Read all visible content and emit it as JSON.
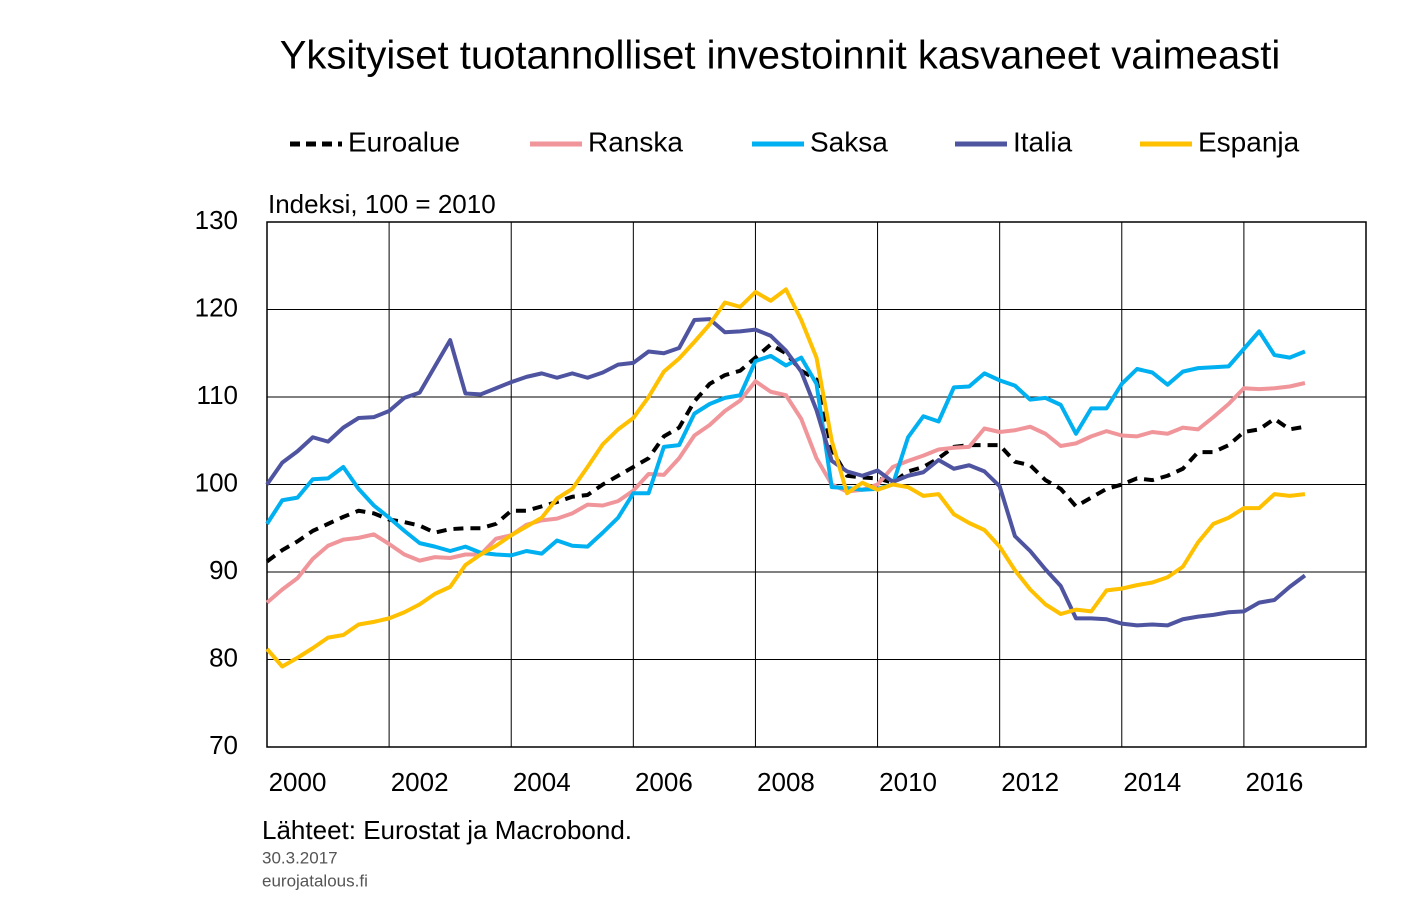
{
  "chart_data": {
    "type": "line",
    "title": "Yksityiset tuotannolliset investoinnit kasvaneet vaimeasti",
    "y_label": "Indeksi, 100 = 2010",
    "source": "Lähteet: Eurostat ja Macrobond.",
    "date": "30.3.2017",
    "site": "eurojatalous.fi",
    "x": [
      2000,
      2000.25,
      2000.5,
      2000.75,
      2001,
      2001.25,
      2001.5,
      2001.75,
      2002,
      2002.25,
      2002.5,
      2002.75,
      2003,
      2003.25,
      2003.5,
      2003.75,
      2004,
      2004.25,
      2004.5,
      2004.75,
      2005,
      2005.25,
      2005.5,
      2005.75,
      2006,
      2006.25,
      2006.5,
      2006.75,
      2007,
      2007.25,
      2007.5,
      2007.75,
      2008,
      2008.25,
      2008.5,
      2008.75,
      2009,
      2009.25,
      2009.5,
      2009.75,
      2010,
      2010.25,
      2010.5,
      2010.75,
      2011,
      2011.25,
      2011.5,
      2011.75,
      2012,
      2012.25,
      2012.5,
      2012.75,
      2013,
      2013.25,
      2013.5,
      2013.75,
      2014,
      2014.25,
      2014.5,
      2014.75,
      2015,
      2015.25,
      2015.5,
      2015.75,
      2016,
      2016.25,
      2016.5,
      2016.75,
      2017
    ],
    "xlim": [
      2000,
      2018
    ],
    "xgrid": [
      2002,
      2004,
      2006,
      2008,
      2010,
      2012,
      2014,
      2016
    ],
    "xticks": [
      {
        "value": 2000.5,
        "label": "2000"
      },
      {
        "value": 2002.5,
        "label": "2002"
      },
      {
        "value": 2004.5,
        "label": "2004"
      },
      {
        "value": 2006.5,
        "label": "2006"
      },
      {
        "value": 2008.5,
        "label": "2008"
      },
      {
        "value": 2010.5,
        "label": "2010"
      },
      {
        "value": 2012.5,
        "label": "2012"
      },
      {
        "value": 2014.5,
        "label": "2014"
      },
      {
        "value": 2016.5,
        "label": "2016"
      }
    ],
    "ylim": [
      70,
      130
    ],
    "yticks": [
      70,
      80,
      90,
      100,
      110,
      120,
      130
    ],
    "grid": true,
    "series": [
      {
        "name": "Euroalue",
        "color": "#000000",
        "dashed": true,
        "values": [
          91.2,
          92.5,
          93.5,
          94.7,
          95.5,
          96.3,
          97,
          96.7,
          96.0,
          95.7,
          95.3,
          94.5,
          94.9,
          95.0,
          95.0,
          95.5,
          97.0,
          97.0,
          97.5,
          98.0,
          98.6,
          98.8,
          100.0,
          101.0,
          102.0,
          103.0,
          105.5,
          106.5,
          109.5,
          111.5,
          112.5,
          113.0,
          114.5,
          116.0,
          115.0,
          113.0,
          112.0,
          104.0,
          101.0,
          100.8,
          100.7,
          100.2,
          101.5,
          102.0,
          103.0,
          104.3,
          104.5,
          104.5,
          104.5,
          102.6,
          102.2,
          100.5,
          99.5,
          97.5,
          98.5,
          99.5,
          100.0,
          100.7,
          100.5,
          101.0,
          101.8,
          103.7,
          103.7,
          104.5,
          106.0,
          106.3,
          107.5,
          106.3,
          106.6
        ]
      },
      {
        "name": "Ranska",
        "color": "#f0969b",
        "values": [
          86.5,
          88,
          89.3,
          91.5,
          93,
          93.7,
          93.9,
          94.3,
          93.2,
          92.0,
          91.3,
          91.7,
          91.6,
          92.0,
          92.0,
          93.8,
          94.2,
          95.4,
          95.9,
          96.1,
          96.7,
          97.7,
          97.6,
          98.1,
          99.3,
          101.2,
          101.1,
          103.0,
          105.6,
          106.8,
          108.4,
          109.6,
          111.8,
          110.6,
          110.2,
          107.5,
          103.0,
          100.0,
          99.2,
          99.4,
          100.0,
          102.0,
          102.7,
          103.3,
          104.0,
          104.2,
          104.3,
          106.4,
          106.0,
          106.2,
          106.6,
          105.8,
          104.4,
          104.7,
          105.5,
          106.1,
          105.6,
          105.5,
          106.0,
          105.8,
          106.5,
          106.3,
          107.7,
          109.2,
          111.0,
          110.9,
          111.0,
          111.2,
          111.6
        ]
      },
      {
        "name": "Saksa",
        "color": "#00b0f0",
        "values": [
          95.5,
          98.2,
          98.5,
          100.6,
          100.7,
          102.0,
          99.5,
          97.6,
          96.2,
          94.7,
          93.3,
          92.9,
          92.4,
          92.9,
          92.2,
          92.0,
          91.9,
          92.4,
          92.1,
          93.6,
          93.0,
          92.9,
          94.5,
          96.2,
          99.0,
          99.0,
          104.3,
          104.5,
          108.1,
          109.2,
          109.9,
          110.2,
          114.1,
          114.7,
          113.6,
          114.5,
          111.5,
          99.7,
          99.6,
          99.4,
          99.5,
          100.0,
          105.4,
          107.8,
          107.2,
          111.1,
          111.2,
          112.7,
          111.9,
          111.3,
          109.7,
          109.9,
          109.1,
          105.8,
          108.7,
          108.7,
          111.5,
          113.2,
          112.8,
          111.4,
          112.9,
          113.3,
          113.4,
          113.5,
          115.5,
          117.5,
          114.8,
          114.5,
          115.2
        ]
      },
      {
        "name": "Italia",
        "color": "#4f54a0",
        "values": [
          100,
          102.5,
          103.8,
          105.4,
          104.9,
          106.5,
          107.6,
          107.7,
          108.4,
          109.9,
          110.5,
          113.5,
          116.5,
          110.4,
          110.3,
          111.0,
          111.7,
          112.3,
          112.7,
          112.2,
          112.7,
          112.2,
          112.8,
          113.7,
          113.9,
          115.2,
          115.0,
          115.6,
          118.8,
          118.9,
          117.4,
          117.5,
          117.7,
          117.0,
          115.3,
          112.9,
          108.5,
          102.7,
          101.5,
          101.0,
          101.6,
          100.3,
          101.0,
          101.4,
          102.8,
          101.8,
          102.2,
          101.5,
          99.8,
          94.1,
          92.4,
          90.3,
          88.4,
          84.7,
          84.7,
          84.6,
          84.1,
          83.9,
          84.0,
          83.9,
          84.6,
          84.9,
          85.1,
          85.4,
          85.5,
          86.5,
          86.8,
          88.3,
          89.6
        ]
      },
      {
        "name": "Espanja",
        "color": "#ffc000",
        "values": [
          81.2,
          79.2,
          80.2,
          81.3,
          82.5,
          82.8,
          84.0,
          84.3,
          84.7,
          85.4,
          86.3,
          87.5,
          88.3,
          90.8,
          92.0,
          93.0,
          94.2,
          95.2,
          96.2,
          98.4,
          99.5,
          102.0,
          104.6,
          106.3,
          107.6,
          110.0,
          112.9,
          114.4,
          116.3,
          118.3,
          120.8,
          120.3,
          122.0,
          121.0,
          122.3,
          118.8,
          114.5,
          105.0,
          99.0,
          100.2,
          99.4,
          100.0,
          99.7,
          98.7,
          98.9,
          96.6,
          95.6,
          94.8,
          92.9,
          90.2,
          88.0,
          86.3,
          85.2,
          85.7,
          85.5,
          87.9,
          88.1,
          88.5,
          88.8,
          89.4,
          90.6,
          93.4,
          95.5,
          96.2,
          97.3,
          97.3,
          98.9,
          98.7,
          98.9
        ]
      }
    ]
  }
}
